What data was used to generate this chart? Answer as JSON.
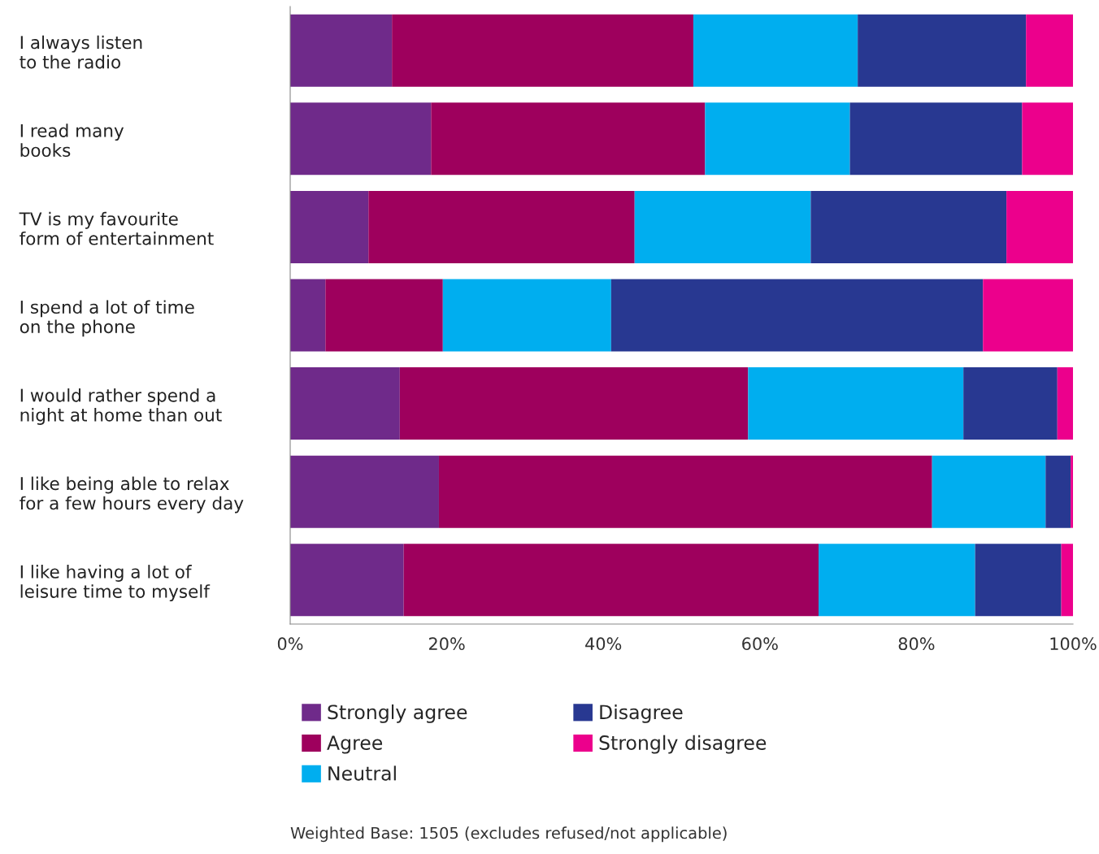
{
  "chart_data": {
    "type": "bar",
    "orientation": "horizontal",
    "stacked": true,
    "categories": [
      "I always listen\nto the radio",
      "I read many\nbooks",
      "TV is my favourite\nform of entertainment",
      "I spend a lot of time\non the phone",
      "I would rather spend a\nnight at home than out",
      "I like being able to relax\nfor a few hours every day",
      "I like having a lot of\nleisure time to myself"
    ],
    "series": [
      {
        "name": "Strongly agree",
        "color": "#6f2a8a",
        "values": [
          13,
          18,
          10,
          4.5,
          14,
          19,
          14.5
        ]
      },
      {
        "name": "Agree",
        "color": "#9e005d",
        "values": [
          38.5,
          35,
          34,
          15,
          44.5,
          63,
          53
        ]
      },
      {
        "name": "Neutral",
        "color": "#00aeef",
        "values": [
          21,
          18.5,
          22.5,
          21.5,
          27.5,
          14.5,
          20
        ]
      },
      {
        "name": "Disagree",
        "color": "#283891",
        "values": [
          21.5,
          22,
          25,
          47.5,
          12,
          3.2,
          11
        ]
      },
      {
        "name": "Strongly disagree",
        "color": "#ec008c",
        "values": [
          6,
          6.5,
          8.5,
          11.5,
          2,
          0.3,
          1.5
        ]
      }
    ],
    "xlim": [
      0,
      100
    ],
    "xticks": [
      {
        "value": 0,
        "label": "0%"
      },
      {
        "value": 20,
        "label": "20%"
      },
      {
        "value": 40,
        "label": "40%"
      },
      {
        "value": 60,
        "label": "60%"
      },
      {
        "value": 80,
        "label": "80%"
      },
      {
        "value": 100,
        "label": "100%"
      }
    ],
    "grid": false,
    "legend": "bottom",
    "annotations": [
      "Weighted Base: 1505 (excludes refused/not applicable)"
    ]
  }
}
